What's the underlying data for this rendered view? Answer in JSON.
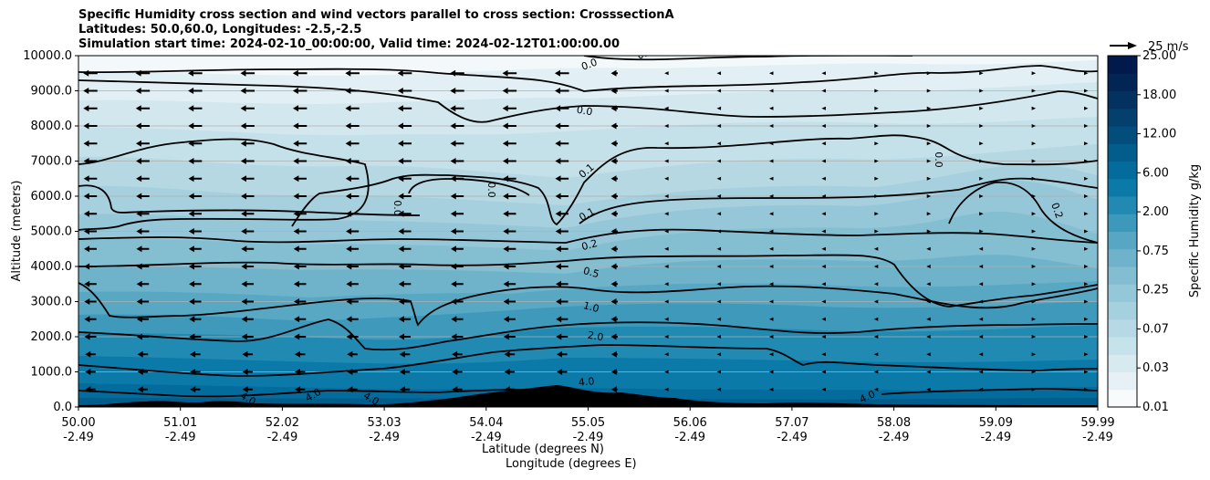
{
  "chart_data": {
    "type": "cross-section contourf with wind vectors",
    "title_lines": [
      "Specific Humidity cross section and wind vectors parallel to cross section: CrosssectionA",
      "Latitudes: 50.0,60.0, Longitudes: -2.5,-2.5",
      "Simulation start time: 2024-02-10_00:00:00, Valid time: 2024-02-12T01:00:00.00"
    ],
    "ylabel": "Altitude (meters)",
    "xlabel_lat": "Latitude (degrees N)",
    "xlabel_lon": "Longitude (degrees E)",
    "ylim": [
      0,
      10000
    ],
    "y_ticks": [
      "0.0",
      "1000.0",
      "2000.0",
      "3000.0",
      "4000.0",
      "5000.0",
      "6000.0",
      "7000.0",
      "8000.0",
      "9000.0",
      "10000.0"
    ],
    "x_ticks": [
      {
        "lat": "50.00",
        "lon": "-2.49"
      },
      {
        "lat": "51.01",
        "lon": "-2.49"
      },
      {
        "lat": "52.02",
        "lon": "-2.49"
      },
      {
        "lat": "53.03",
        "lon": "-2.49"
      },
      {
        "lat": "54.04",
        "lon": "-2.49"
      },
      {
        "lat": "55.05",
        "lon": "-2.49"
      },
      {
        "lat": "56.06",
        "lon": "-2.49"
      },
      {
        "lat": "57.07",
        "lon": "-2.49"
      },
      {
        "lat": "58.08",
        "lon": "-2.49"
      },
      {
        "lat": "59.09",
        "lon": "-2.49"
      },
      {
        "lat": "59.99",
        "lon": "-2.49"
      }
    ],
    "colorbar": {
      "label": "Specific Humidity g/kg",
      "tick_labels": [
        "0.01",
        "0.03",
        "0.07",
        "0.25",
        "0.75",
        "2.00",
        "6.00",
        "12.00",
        "18.00",
        "25.00"
      ],
      "palette": [
        "#f7fbfc",
        "#e7f1f5",
        "#d7eaf0",
        "#c6e2ea",
        "#b6d9e5",
        "#a5d0de",
        "#94c7d8",
        "#82bdd1",
        "#6eb2cb",
        "#57a6c3",
        "#3d99bb",
        "#2189b2",
        "#0b7aa8",
        "#036c9c",
        "#035d8c",
        "#034d7c",
        "#03406e",
        "#033261",
        "#032555",
        "#021a4b"
      ]
    },
    "reference_vector": {
      "label": "25 m/s",
      "value": 25
    },
    "contour_labels": [
      "0.0",
      "0.0",
      "0.0",
      "0.1",
      "0.0",
      "0.1",
      "0.0",
      "0.0",
      "0.2",
      "0.5",
      "0.2",
      "1.0",
      "2.0",
      "4.0",
      "4.0",
      "4.0",
      "4.0",
      "4.0"
    ],
    "wind_levels_m": [
      500,
      1000,
      1500,
      2000,
      2500,
      3000,
      3500,
      4000,
      4500,
      5000,
      5500,
      6000,
      6500,
      7000,
      7500,
      8000,
      8500,
      9000,
      9500
    ],
    "wind_columns": 20
  }
}
